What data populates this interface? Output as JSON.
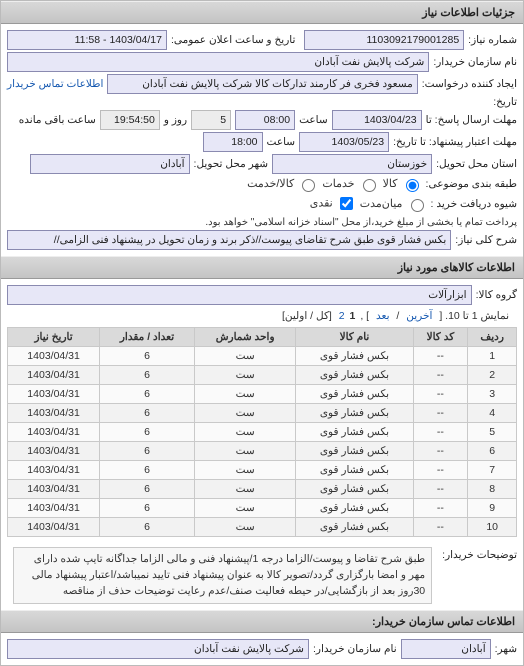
{
  "titles": {
    "details": "جزئیات اطلاعات نیاز",
    "goods": "اطلاعات کالاهای مورد نیاز",
    "buyerOrg": "اطلاعات تماس سازمان خریدار:"
  },
  "labels": {
    "reqNo": "شماره نیاز:",
    "pubDate": "تاریخ و ساعت اعلان عمومی:",
    "buyerName": "نام سازمان خریدار:",
    "requester": "ایجاد کننده درخواست:",
    "buyerContact": "اطلاعات تماس خریدار",
    "history": "تاریخ:",
    "deadlineTo": "مهلت ارسال پاسخ: تا",
    "time": "ساعت",
    "day": "روز و",
    "remain": "ساعت باقی مانده",
    "validTo": "مهلت اعتبار پیشنهاد: تا تاریخ:",
    "deliverState": "استان محل تحویل:",
    "deliverCity": "شهر محل تحویل:",
    "packing": "طبقه بندی موضوعی:",
    "buyType": "شیوه دریافت خرید :",
    "buyTypeNote": "پرداخت تمام یا بخشی از مبلغ خرید،از محل \"اسناد خزانه اسلامی\" خواهد بود.",
    "mainDesc": "شرح کلی نیاز:",
    "goodsGroup": "گروه کالا:",
    "city": "شهر:",
    "buyerOrgName": "نام سازمان خریدار:",
    "buyerDesc": "توضیحات خریدار:"
  },
  "values": {
    "reqNo": "1103092179001285",
    "pubDate": "1403/04/17 - 11:58",
    "buyerName": "شرکت پالایش نفت آبادان",
    "requester": "مسعود فخری فر کارمند تدارکات کالا شرکت پالایش نفت آبادان",
    "deadlineDate": "1403/04/23",
    "deadlineTime": "08:00",
    "days": "5",
    "remain": "19:54:50",
    "validDate": "1403/05/23",
    "validTime": "18:00",
    "state": "خوزستان",
    "deliverCity": "آبادان",
    "mainDesc": "بکس فشار قوی طبق شرح تقاضای پیوست//ذکر برند و زمان تحویل در پیشنهاد فنی الزامی//",
    "goodsGroup": "ابزارآلات",
    "city": "آبادان",
    "buyerOrgName": "شرکت پالایش نفت آبادان",
    "buyerDesc": "طبق شرح تقاضا و پیوست/الزاما درجه 1/پیشنهاد فنی و مالی الزاما جداگانه تایپ شده دارای مهر و امضا بارگزاری گردد/تصویر کالا به عنوان پیشنهاد فنی تایید نمیباشد/اعتبار پیشنهاد مالی 30روز بعد از بازگشایی/در حیطه فعالیت صنف/عدم رعایت توضیحات حذف از مناقصه"
  },
  "options": {
    "packing": {
      "kala": "کالا",
      "khadamat": "خدمات",
      "both": "کالا/خدمت",
      "selected": "kala"
    },
    "buyType": {
      "midterm": "میان‌مدت",
      "naghd": "نقدی",
      "selected": "naghd"
    }
  },
  "pager": {
    "text1": "نمایش 1 تا 10. [",
    "last": "آخرین",
    "sep": "/",
    "next": "بعد",
    "p1": "1",
    "p2": "2",
    "text2": "] ,",
    "tail": "[کل / اولین]"
  },
  "table": {
    "cols": [
      "ردیف",
      "کد کالا",
      "نام کالا",
      "واحد شمارش",
      "تعداد / مقدار",
      "تاریخ نیاز"
    ],
    "rows": [
      [
        "1",
        "--",
        "بکس فشار قوی",
        "ست",
        "6",
        "1403/04/31"
      ],
      [
        "2",
        "--",
        "بکس فشار قوی",
        "ست",
        "6",
        "1403/04/31"
      ],
      [
        "3",
        "--",
        "بکس فشار قوی",
        "ست",
        "6",
        "1403/04/31"
      ],
      [
        "4",
        "--",
        "بکس فشار قوی",
        "ست",
        "6",
        "1403/04/31"
      ],
      [
        "5",
        "--",
        "بکس فشار قوی",
        "ست",
        "6",
        "1403/04/31"
      ],
      [
        "6",
        "--",
        "بکس فشار قوی",
        "ست",
        "6",
        "1403/04/31"
      ],
      [
        "7",
        "--",
        "بکس فشار قوی",
        "ست",
        "6",
        "1403/04/31"
      ],
      [
        "8",
        "--",
        "بکس فشار قوی",
        "ست",
        "6",
        "1403/04/31"
      ],
      [
        "9",
        "--",
        "بکس فشار قوی",
        "ست",
        "6",
        "1403/04/31"
      ],
      [
        "10",
        "--",
        "بکس فشار قوی",
        "ست",
        "6",
        "1403/04/31"
      ]
    ]
  }
}
